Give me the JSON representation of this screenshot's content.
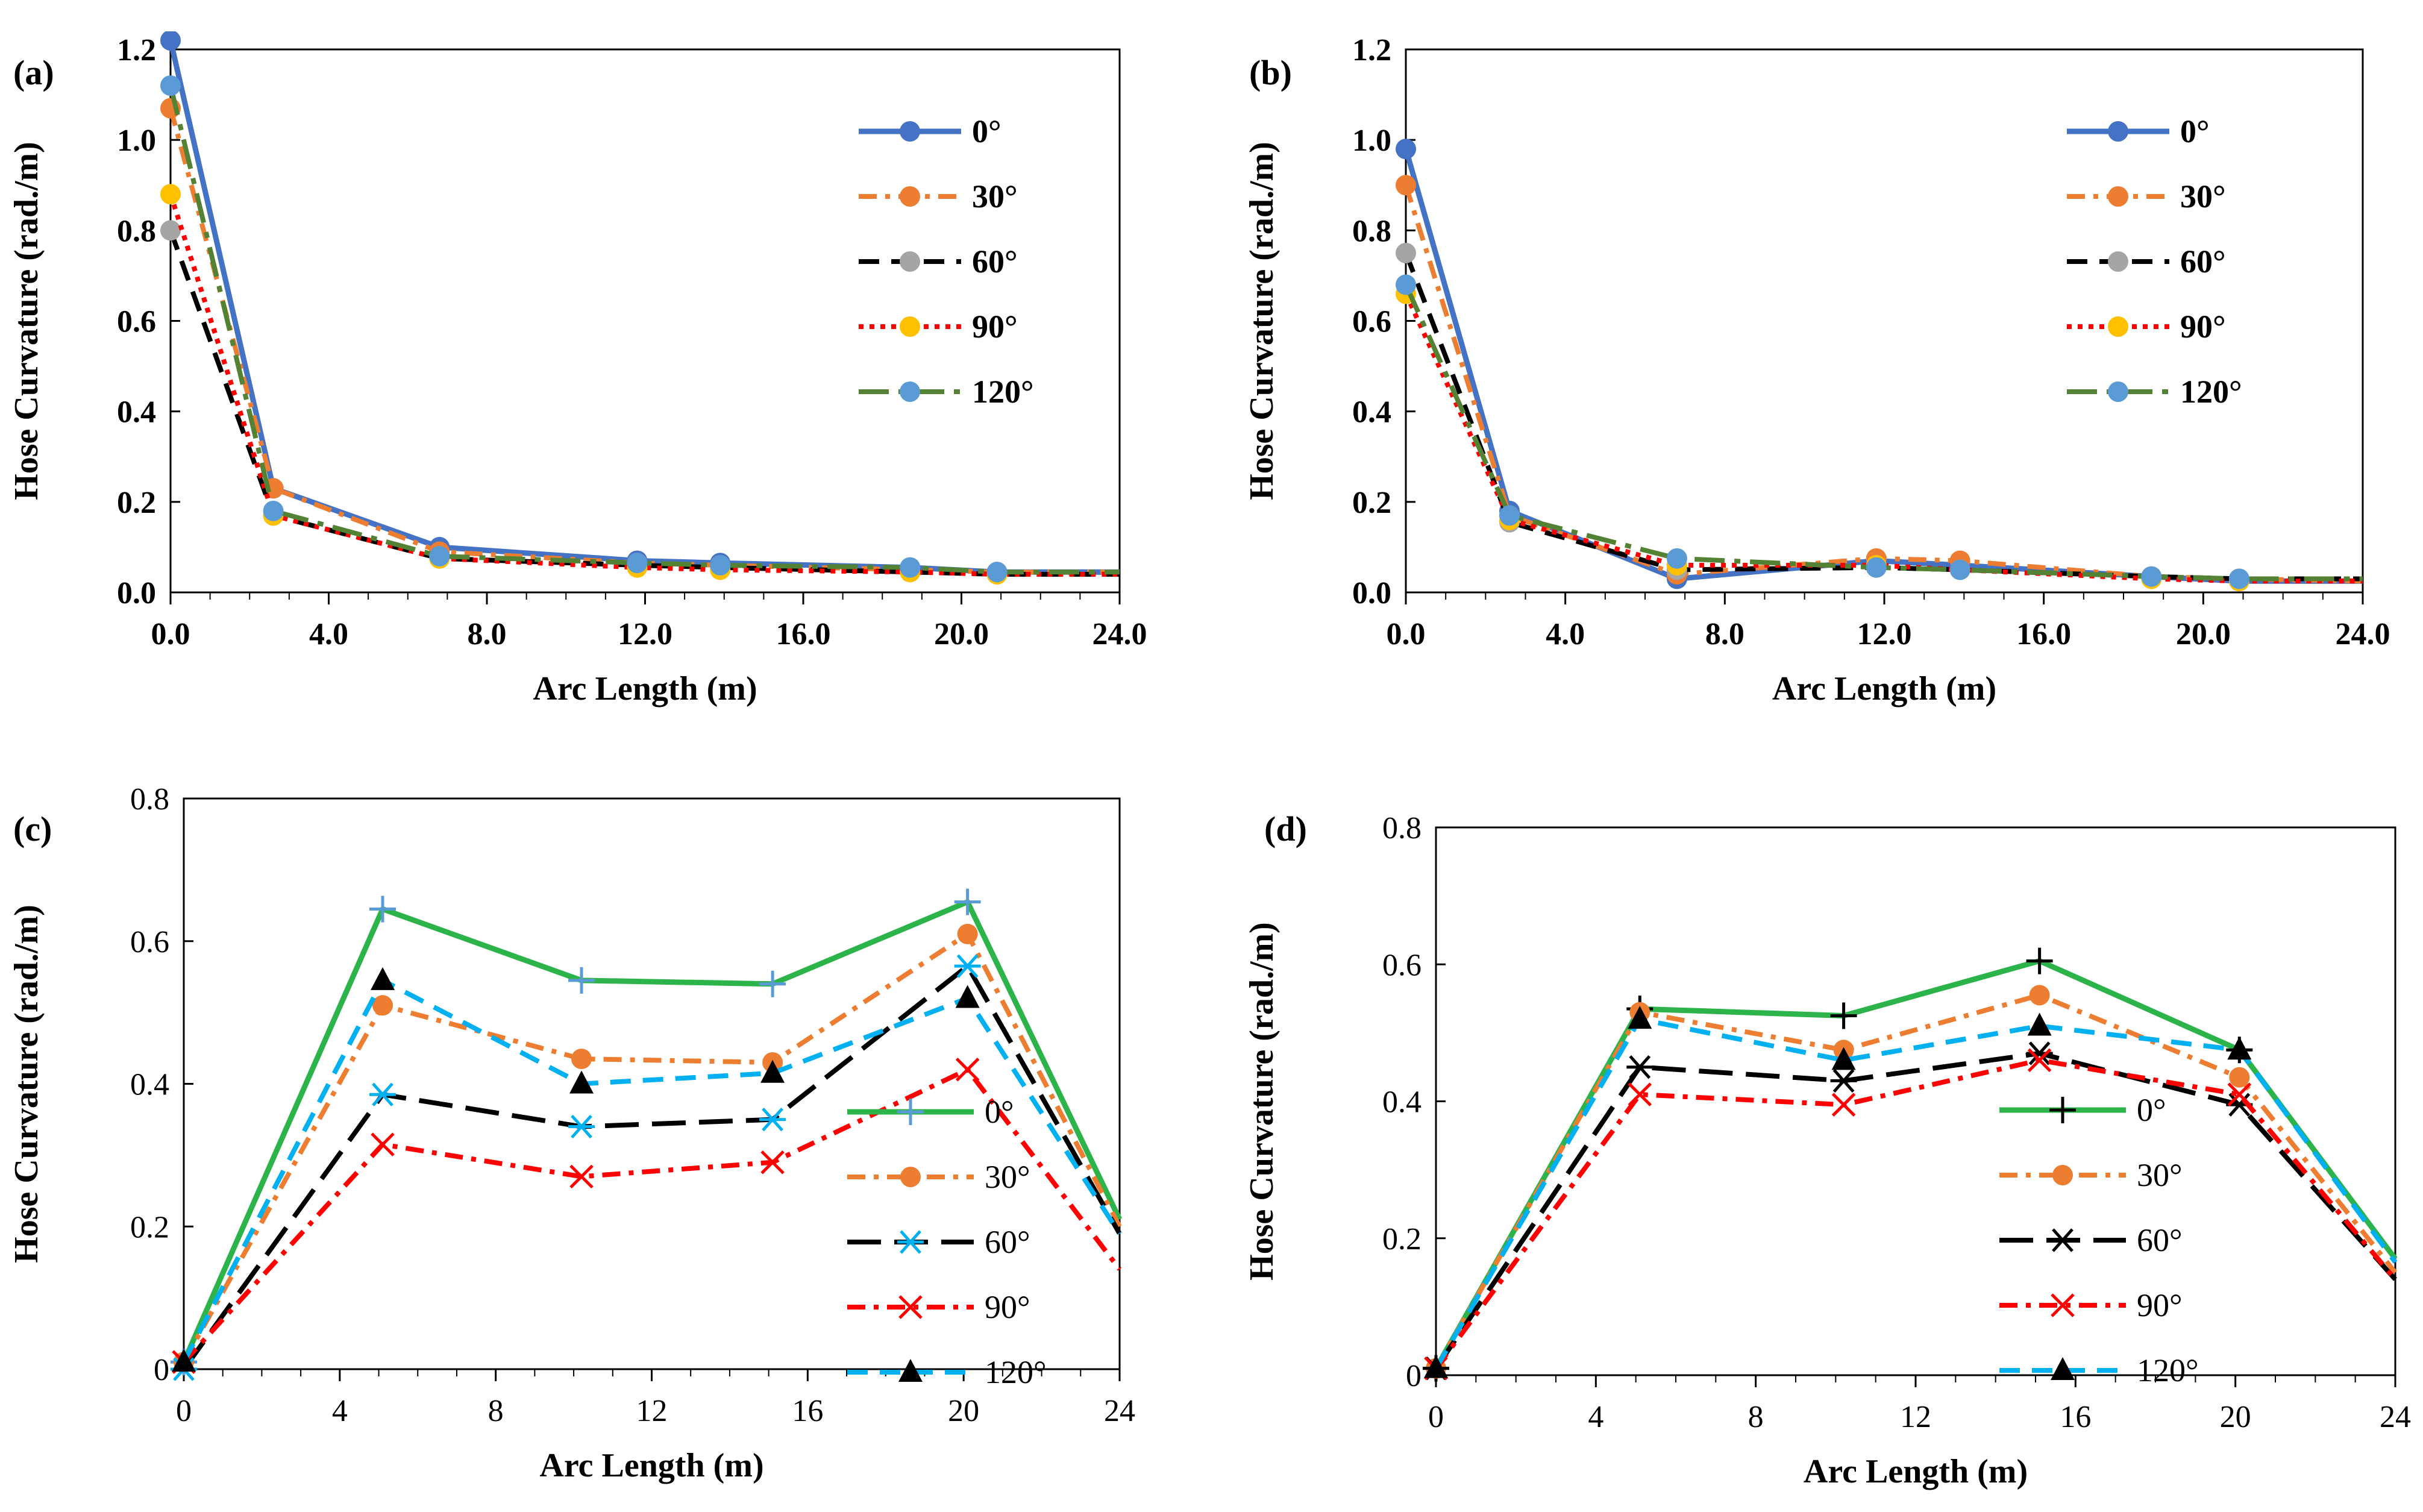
{
  "chart_data": [
    {
      "panel": "(a)",
      "type": "line",
      "xlabel": "Arc Length (m)",
      "ylabel": "Hose Curvature (rad./m)",
      "xlim": [
        0,
        24
      ],
      "ylim": [
        0,
        1.2
      ],
      "xticks": [
        "0.0",
        "4.0",
        "8.0",
        "12.0",
        "16.0",
        "20.0",
        "24.0"
      ],
      "yticks": [
        "0.0",
        "0.2",
        "0.4",
        "0.6",
        "0.8",
        "1.0",
        "1.2"
      ],
      "legend_position": "top-right",
      "series": [
        {
          "name": "0°",
          "color": "#4472C4",
          "dash": "solid",
          "marker": "circle",
          "marker_color": "#4472C4",
          "x": [
            0,
            2.6,
            6.8,
            11.8,
            13.9,
            18.7,
            20.9,
            24
          ],
          "y": [
            1.22,
            0.23,
            0.1,
            0.07,
            0.065,
            0.055,
            0.045,
            0.045
          ]
        },
        {
          "name": "30°",
          "color": "#ED7D31",
          "dash": "dashdot",
          "marker": "circle",
          "marker_color": "#ED7D31",
          "x": [
            0,
            2.6,
            6.8,
            11.8,
            13.9,
            18.7,
            20.9,
            24
          ],
          "y": [
            1.07,
            0.23,
            0.09,
            0.065,
            0.06,
            0.05,
            0.045,
            0.045
          ]
        },
        {
          "name": "60°",
          "color": "#000000",
          "dash": "dash",
          "marker": "circle",
          "marker_color": "#A5A5A5",
          "x": [
            0,
            2.6,
            6.8,
            11.8,
            13.9,
            18.7,
            20.9,
            24
          ],
          "y": [
            0.8,
            0.17,
            0.075,
            0.06,
            0.055,
            0.045,
            0.04,
            0.04
          ]
        },
        {
          "name": "90°",
          "color": "#FF0000",
          "dash": "dot",
          "marker": "circle",
          "marker_color": "#FFC000",
          "x": [
            0,
            2.6,
            6.8,
            11.8,
            13.9,
            18.7,
            20.9,
            24
          ],
          "y": [
            0.88,
            0.17,
            0.075,
            0.055,
            0.05,
            0.045,
            0.04,
            0.04
          ]
        },
        {
          "name": "120°",
          "color": "#548235",
          "dash": "longdashdot",
          "marker": "circle",
          "marker_color": "#5B9BD5",
          "x": [
            0,
            2.6,
            6.8,
            11.8,
            13.9,
            18.7,
            20.9,
            24
          ],
          "y": [
            1.12,
            0.18,
            0.08,
            0.065,
            0.06,
            0.055,
            0.045,
            0.045
          ]
        }
      ]
    },
    {
      "panel": "(b)",
      "type": "line",
      "xlabel": "Arc Length (m)",
      "ylabel": "Hose Curvature (rad./m)",
      "xlim": [
        0,
        24
      ],
      "ylim": [
        0,
        1.2
      ],
      "xticks": [
        "0.0",
        "4.0",
        "8.0",
        "12.0",
        "16.0",
        "20.0",
        "24.0"
      ],
      "yticks": [
        "0.0",
        "0.2",
        "0.4",
        "0.6",
        "0.8",
        "1.0",
        "1.2"
      ],
      "legend_position": "top-right",
      "series": [
        {
          "name": "0°",
          "color": "#4472C4",
          "dash": "solid",
          "marker": "circle",
          "marker_color": "#4472C4",
          "x": [
            0,
            2.6,
            6.8,
            11.8,
            13.9,
            18.7,
            20.9,
            24
          ],
          "y": [
            0.98,
            0.18,
            0.03,
            0.07,
            0.06,
            0.035,
            0.025,
            0.025
          ]
        },
        {
          "name": "30°",
          "color": "#ED7D31",
          "dash": "dashdot",
          "marker": "circle",
          "marker_color": "#ED7D31",
          "x": [
            0,
            2.6,
            6.8,
            11.8,
            13.9,
            18.7,
            20.9,
            24
          ],
          "y": [
            0.9,
            0.17,
            0.04,
            0.075,
            0.07,
            0.035,
            0.03,
            0.025
          ]
        },
        {
          "name": "60°",
          "color": "#000000",
          "dash": "dash",
          "marker": "circle",
          "marker_color": "#A5A5A5",
          "x": [
            0,
            2.6,
            6.8,
            11.8,
            13.9,
            18.7,
            20.9,
            24
          ],
          "y": [
            0.75,
            0.155,
            0.05,
            0.055,
            0.05,
            0.035,
            0.03,
            0.03
          ]
        },
        {
          "name": "90°",
          "color": "#FF0000",
          "dash": "dot",
          "marker": "circle",
          "marker_color": "#FFC000",
          "x": [
            0,
            2.6,
            6.8,
            11.8,
            13.9,
            18.7,
            20.9,
            24
          ],
          "y": [
            0.66,
            0.16,
            0.06,
            0.06,
            0.05,
            0.03,
            0.025,
            0.025
          ]
        },
        {
          "name": "120°",
          "color": "#548235",
          "dash": "longdashdot",
          "marker": "circle",
          "marker_color": "#5B9BD5",
          "x": [
            0,
            2.6,
            6.8,
            11.8,
            13.9,
            18.7,
            20.9,
            24
          ],
          "y": [
            0.68,
            0.17,
            0.075,
            0.055,
            0.05,
            0.035,
            0.03,
            0.03
          ]
        }
      ]
    },
    {
      "panel": "(c)",
      "type": "line",
      "xlabel": "Arc Length (m)",
      "ylabel": "Hose Curvature (rad./m)",
      "xlim": [
        0,
        24
      ],
      "ylim": [
        0,
        0.8
      ],
      "xticks": [
        "0",
        "4",
        "8",
        "12",
        "16",
        "20",
        "24"
      ],
      "yticks": [
        "0",
        "0.2",
        "0.4",
        "0.6",
        "0.8"
      ],
      "legend_position": "bottom-right",
      "series": [
        {
          "name": "0°",
          "color": "#2CB34A",
          "dash": "solid",
          "marker": "plus",
          "marker_color": "#5B9BD5",
          "x": [
            0,
            5.1,
            10.2,
            15.1,
            20.1,
            24
          ],
          "y": [
            0.01,
            0.645,
            0.545,
            0.54,
            0.655,
            0.21
          ]
        },
        {
          "name": "30°",
          "color": "#ED7D31",
          "dash": "dashdot",
          "marker": "circle",
          "marker_color": "#ED7D31",
          "x": [
            0,
            5.1,
            10.2,
            15.1,
            20.1,
            24
          ],
          "y": [
            0.01,
            0.51,
            0.435,
            0.43,
            0.61,
            0.2
          ]
        },
        {
          "name": "60°",
          "color": "#000000",
          "dash": "longdash",
          "marker": "asterisk",
          "marker_color": "#00B0F0",
          "x": [
            0,
            5.1,
            10.2,
            15.1,
            20.1,
            24
          ],
          "y": [
            0.0,
            0.385,
            0.34,
            0.35,
            0.565,
            0.19
          ]
        },
        {
          "name": "90°",
          "color": "#FF0000",
          "dash": "dashdot",
          "marker": "x",
          "marker_color": "#FF0000",
          "x": [
            0,
            5.1,
            10.2,
            15.1,
            20.1,
            24
          ],
          "y": [
            0.01,
            0.315,
            0.27,
            0.29,
            0.42,
            0.14
          ]
        },
        {
          "name": "120°",
          "color": "#00B0F0",
          "dash": "dash",
          "marker": "triangle",
          "marker_color": "#000000",
          "x": [
            0,
            5.1,
            10.2,
            15.1,
            20.1,
            24
          ],
          "y": [
            0.01,
            0.545,
            0.4,
            0.415,
            0.52,
            0.19
          ]
        }
      ]
    },
    {
      "panel": "(d)",
      "type": "line",
      "xlabel": "Arc Length (m)",
      "ylabel": "Hose Curvature (rad./m)",
      "xlim": [
        0,
        24
      ],
      "ylim": [
        0,
        0.8
      ],
      "xticks": [
        "0",
        "4",
        "8",
        "12",
        "16",
        "20",
        "24"
      ],
      "yticks": [
        "0",
        "0.2",
        "0.4",
        "0.6",
        "0.8"
      ],
      "legend_position": "bottom-center",
      "series": [
        {
          "name": "0°",
          "color": "#2CB34A",
          "dash": "solid",
          "marker": "plus",
          "marker_color": "#000000",
          "x": [
            0,
            5.1,
            10.2,
            15.1,
            20.1,
            24
          ],
          "y": [
            0.01,
            0.535,
            0.525,
            0.605,
            0.475,
            0.17
          ]
        },
        {
          "name": "30°",
          "color": "#ED7D31",
          "dash": "dashdot",
          "marker": "circle",
          "marker_color": "#ED7D31",
          "x": [
            0,
            5.1,
            10.2,
            15.1,
            20.1,
            24
          ],
          "y": [
            0.01,
            0.53,
            0.475,
            0.555,
            0.435,
            0.15
          ]
        },
        {
          "name": "60°",
          "color": "#000000",
          "dash": "longdash",
          "marker": "asterisk",
          "marker_color": "#000000",
          "x": [
            0,
            5.1,
            10.2,
            15.1,
            20.1,
            24
          ],
          "y": [
            0.01,
            0.45,
            0.43,
            0.47,
            0.395,
            0.14
          ]
        },
        {
          "name": "90°",
          "color": "#FF0000",
          "dash": "dashdot",
          "marker": "x",
          "marker_color": "#FF0000",
          "x": [
            0,
            5.1,
            10.2,
            15.1,
            20.1,
            24
          ],
          "y": [
            0.01,
            0.41,
            0.395,
            0.46,
            0.41,
            0.14
          ]
        },
        {
          "name": "120°",
          "color": "#00B0F0",
          "dash": "dash",
          "marker": "triangle",
          "marker_color": "#000000",
          "x": [
            0,
            5.1,
            10.2,
            15.1,
            20.1,
            24
          ],
          "y": [
            0.01,
            0.52,
            0.46,
            0.51,
            0.475,
            0.165
          ]
        }
      ]
    }
  ]
}
